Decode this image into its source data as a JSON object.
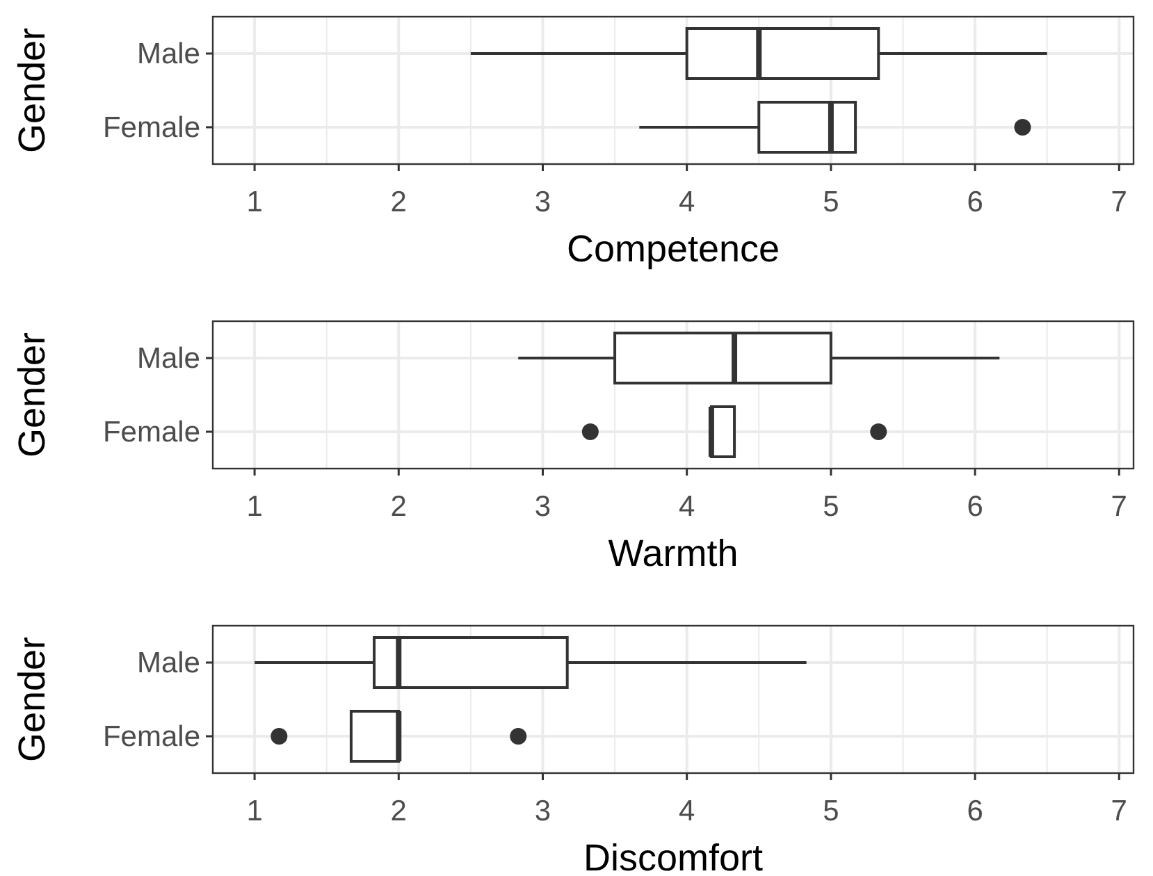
{
  "chart_data": [
    {
      "type": "box",
      "orientation": "horizontal",
      "xlabel": "Competence",
      "ylabel": "Gender",
      "categories": [
        "Male",
        "Female"
      ],
      "boxes": [
        {
          "low": 2.5,
          "q1": 4,
          "median": 4.5,
          "q3": 5.33,
          "high": 6.5
        },
        {
          "low": 3.67,
          "q1": 4.5,
          "median": 5,
          "q3": 5.17,
          "high": 5.17,
          "outliers": [
            6.33
          ]
        }
      ],
      "xlim": [
        0.71,
        7.1
      ],
      "xticks": [
        1,
        2,
        3,
        4,
        5,
        6,
        7
      ],
      "grid": true
    },
    {
      "type": "box",
      "orientation": "horizontal",
      "xlabel": "Warmth",
      "ylabel": "Gender",
      "categories": [
        "Male",
        "Female"
      ],
      "boxes": [
        {
          "low": 2.83,
          "q1": 3.5,
          "median": 4.33,
          "q3": 5,
          "high": 6.17
        },
        {
          "low": 4.17,
          "q1": 4.17,
          "median": 4.17,
          "q3": 4.33,
          "high": 4.33,
          "outliers": [
            3.33,
            5.33
          ]
        }
      ],
      "xlim": [
        0.71,
        7.1
      ],
      "xticks": [
        1,
        2,
        3,
        4,
        5,
        6,
        7
      ],
      "grid": true
    },
    {
      "type": "box",
      "orientation": "horizontal",
      "xlabel": "Discomfort",
      "ylabel": "Gender",
      "categories": [
        "Male",
        "Female"
      ],
      "boxes": [
        {
          "low": 1,
          "q1": 1.83,
          "median": 2,
          "q3": 3.17,
          "high": 4.83
        },
        {
          "low": 1.67,
          "q1": 1.67,
          "median": 2,
          "q3": 2,
          "high": 2,
          "outliers": [
            1.17,
            2.83
          ]
        }
      ],
      "xlim": [
        0.71,
        7.1
      ],
      "xticks": [
        1,
        2,
        3,
        4,
        5,
        6,
        7
      ],
      "grid": true
    }
  ]
}
